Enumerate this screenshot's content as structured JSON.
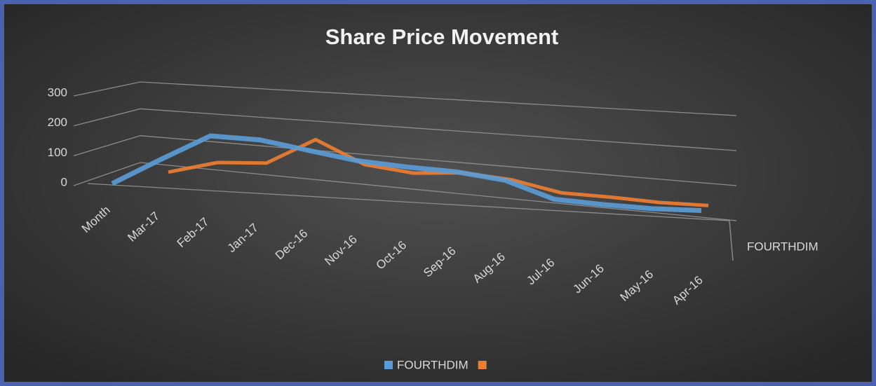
{
  "chart_data": {
    "type": "line",
    "title": "Share Price Movement",
    "categories": [
      "Month",
      "Mar-17",
      "Feb-17",
      "Jan-17",
      "Dec-16",
      "Nov-16",
      "Oct-16",
      "Sep-16",
      "Aug-16",
      "Jul-16",
      "Jun-16",
      "May-16",
      "Apr-16"
    ],
    "series": [
      {
        "name": "FOURTHDIM",
        "color": "#5b9bd5",
        "values": [
          0,
          95,
          190,
          190,
          165,
          140,
          130,
          125,
          105,
          40,
          30,
          25,
          30
        ]
      },
      {
        "color": "#ed7d31",
        "values": [
          null,
          40,
          85,
          95,
          195,
          115,
          95,
          110,
          95,
          55,
          50,
          40,
          40
        ]
      }
    ],
    "ylim": [
      0,
      300
    ],
    "yticks": [
      0,
      100,
      200,
      300
    ],
    "grid": true,
    "legend": "bottom"
  }
}
